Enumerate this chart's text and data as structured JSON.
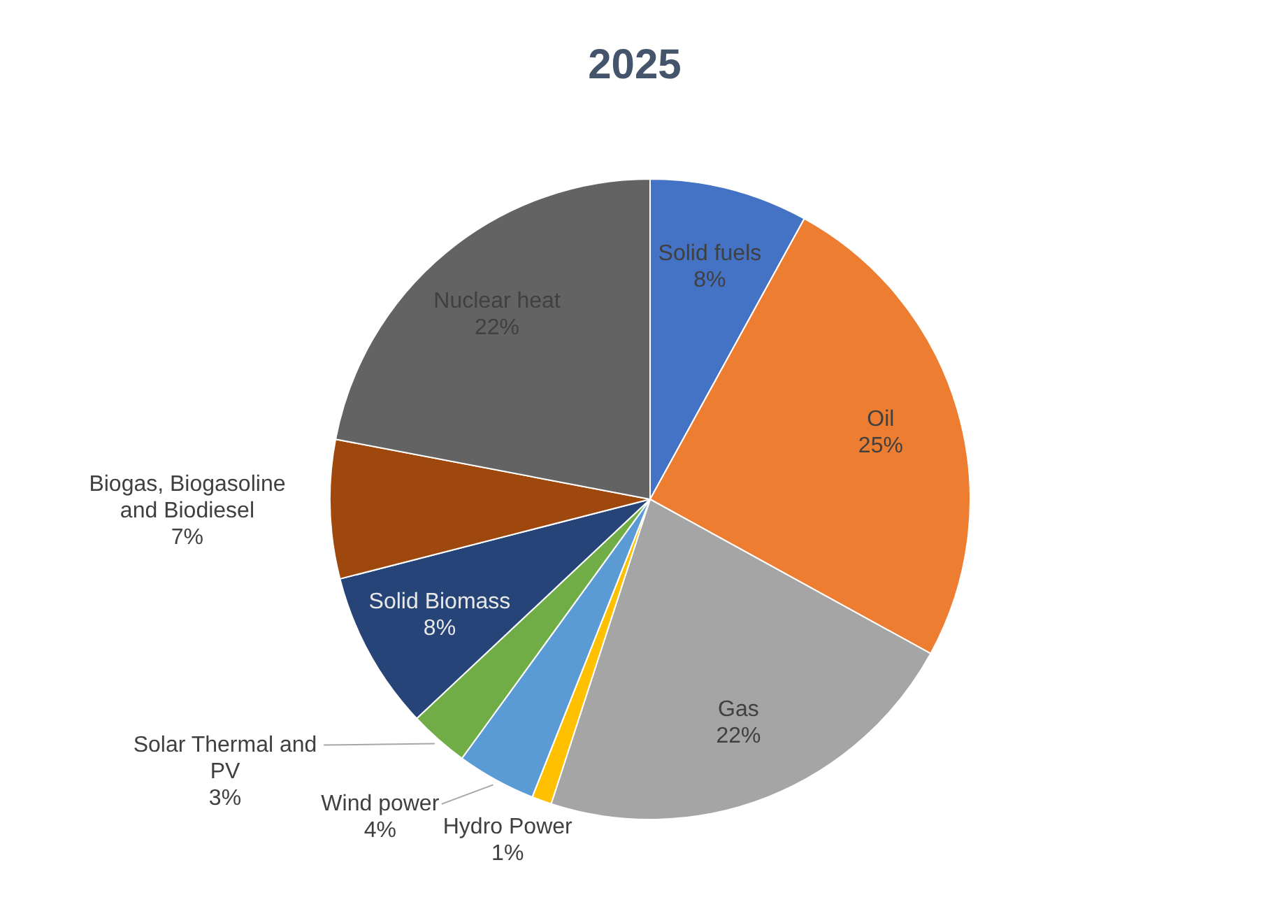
{
  "chart_data": {
    "type": "pie",
    "title": "2025",
    "categories": [
      "Solid fuels",
      "Oil",
      "Gas",
      "Hydro Power",
      "Wind power",
      "Solar Thermal and PV",
      "Solid Biomass",
      "Biogas, Biogasoline and Biodiesel",
      "Nuclear heat"
    ],
    "values": [
      8,
      25,
      22,
      1,
      4,
      3,
      8,
      7,
      22
    ],
    "value_labels": [
      "8%",
      "25%",
      "22%",
      "1%",
      "4%",
      "3%",
      "8%",
      "7%",
      "22%"
    ],
    "colors": [
      "#4472c4",
      "#ed7d31",
      "#a5a5a5",
      "#ffc000",
      "#5b9bd5",
      "#70ad47",
      "#264478",
      "#9e480e",
      "#636363"
    ]
  }
}
